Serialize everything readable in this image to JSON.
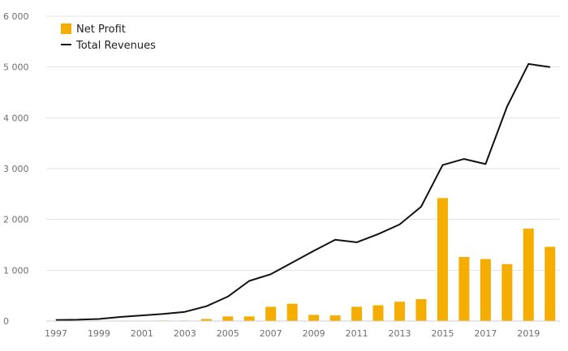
{
  "chart_data": {
    "type": "bar",
    "title": "",
    "xlabel": "",
    "ylabel": "",
    "ylim": [
      0,
      6000
    ],
    "grid": true,
    "legend_position": "top-left",
    "categories": [
      "1997",
      "1998",
      "1999",
      "2000",
      "2001",
      "2002",
      "2003",
      "2004",
      "2005",
      "2006",
      "2007",
      "2008",
      "2009",
      "2010",
      "2011",
      "2012",
      "2013",
      "2014",
      "2015",
      "2016",
      "2017",
      "2018",
      "2019",
      "2020"
    ],
    "x_tick_labels": [
      "1997",
      "1999",
      "2001",
      "2003",
      "2005",
      "2007",
      "2009",
      "2011",
      "2013",
      "2015",
      "2017",
      "2019"
    ],
    "y_tick_labels": [
      "0",
      "1 000",
      "2 000",
      "3 000",
      "4 000",
      "5 000",
      "6 000"
    ],
    "y_ticks": [
      0,
      1000,
      2000,
      3000,
      4000,
      5000,
      6000
    ],
    "series": [
      {
        "name": "Net Profit",
        "type": "bar",
        "color": "#f5ad00",
        "values": [
          0,
          0,
          0,
          0,
          0,
          10,
          10,
          40,
          90,
          90,
          280,
          340,
          120,
          110,
          280,
          310,
          380,
          430,
          2420,
          1260,
          1220,
          1120,
          1820,
          1460
        ]
      },
      {
        "name": "Total Revenues",
        "type": "line",
        "color": "#111111",
        "values": [
          20,
          25,
          40,
          80,
          110,
          140,
          180,
          290,
          480,
          790,
          920,
          1150,
          1380,
          1600,
          1550,
          1710,
          1900,
          2250,
          3070,
          3190,
          3090,
          4220,
          5060,
          5000
        ]
      }
    ]
  }
}
